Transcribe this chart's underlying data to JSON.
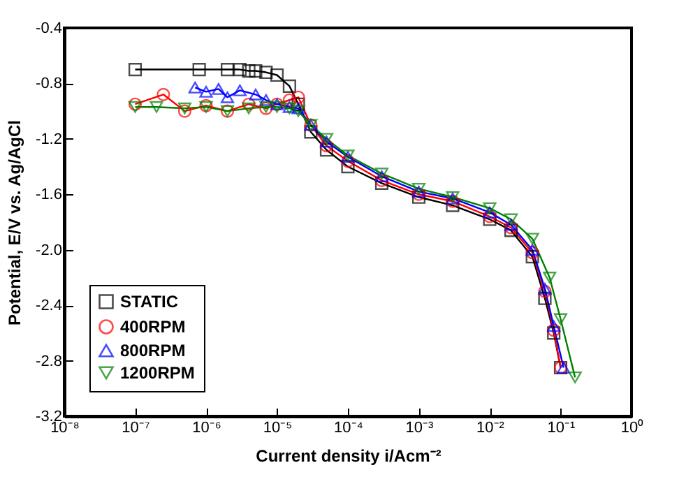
{
  "chart_data": {
    "type": "line",
    "xlabel": "Current density i/Acm⁻²",
    "ylabel": "Potential, E/V vs. Ag/AgCl",
    "log": "x",
    "grid": false,
    "legend": "bottom left",
    "line_style": "solid",
    "xlim": [
      1e-08,
      1
    ],
    "ylim": [
      -3.2,
      -0.4
    ],
    "xticks": [
      {
        "value": 1e-08,
        "label": "10⁻⁸"
      },
      {
        "value": 1e-07,
        "label": "10⁻⁷"
      },
      {
        "value": 1e-06,
        "label": "10⁻⁶"
      },
      {
        "value": 1e-05,
        "label": "10⁻⁵"
      },
      {
        "value": 0.0001,
        "label": "10⁻⁴"
      },
      {
        "value": 0.001,
        "label": "10⁻³"
      },
      {
        "value": 0.01,
        "label": "10⁻²"
      },
      {
        "value": 0.1,
        "label": "10⁻¹"
      },
      {
        "value": 1,
        "label": "10⁰"
      }
    ],
    "yticks": [
      -0.4,
      -0.8,
      -1.2,
      -1.6,
      {
        "value": -2,
        "label": "-2.0"
      },
      -2.4,
      -2.8,
      -3.2
    ],
    "series": [
      {
        "name": "STATIC",
        "color": "#000000",
        "marker": "square",
        "x": [
          1e-07,
          8e-07,
          2e-06,
          3e-06,
          4e-06,
          5e-06,
          7e-06,
          1e-05,
          1.5e-05,
          2e-05,
          3e-05,
          5e-05,
          0.0001,
          0.0003,
          0.001,
          0.003,
          0.01,
          0.02,
          0.04,
          0.06,
          0.08,
          0.1
        ],
        "values": [
          -0.7,
          -0.7,
          -0.7,
          -0.7,
          -0.71,
          -0.71,
          -0.72,
          -0.74,
          -0.82,
          -0.95,
          -1.15,
          -1.28,
          -1.4,
          -1.52,
          -1.62,
          -1.68,
          -1.78,
          -1.86,
          -2.05,
          -2.35,
          -2.6,
          -2.85
        ]
      },
      {
        "name": "400RPM",
        "color": "#ff0000",
        "marker": "circle",
        "x": [
          1e-07,
          2.5e-07,
          5e-07,
          1e-06,
          2e-06,
          4e-06,
          7e-06,
          1e-05,
          1.5e-05,
          2e-05,
          3e-05,
          5e-05,
          0.0001,
          0.0003,
          0.001,
          0.003,
          0.01,
          0.02,
          0.04,
          0.06,
          0.08,
          0.1
        ],
        "values": [
          -0.95,
          -0.88,
          -1.0,
          -0.96,
          -1.0,
          -0.95,
          -0.98,
          -0.95,
          -0.92,
          -0.9,
          -1.1,
          -1.25,
          -1.36,
          -1.5,
          -1.6,
          -1.65,
          -1.76,
          -1.84,
          -2.02,
          -2.3,
          -2.58,
          -2.85
        ]
      },
      {
        "name": "800RPM",
        "color": "#0000ff",
        "marker": "triangle",
        "x": [
          7e-07,
          1e-06,
          1.5e-06,
          2e-06,
          3e-06,
          5e-06,
          7e-06,
          1e-05,
          1.5e-05,
          2e-05,
          3e-05,
          5e-05,
          0.0001,
          0.0003,
          0.001,
          0.003,
          0.01,
          0.02,
          0.04,
          0.06,
          0.08,
          0.11
        ],
        "values": [
          -0.83,
          -0.86,
          -0.84,
          -0.9,
          -0.85,
          -0.88,
          -0.92,
          -0.95,
          -0.97,
          -0.98,
          -1.1,
          -1.22,
          -1.33,
          -1.47,
          -1.58,
          -1.63,
          -1.73,
          -1.82,
          -2.0,
          -2.28,
          -2.55,
          -2.85
        ]
      },
      {
        "name": "1200RPM",
        "color": "#008000",
        "marker": "triangle-down",
        "x": [
          1e-07,
          2e-07,
          5e-07,
          1e-06,
          2e-06,
          4e-06,
          7e-06,
          1e-05,
          1.5e-05,
          2e-05,
          3e-05,
          5e-05,
          0.0001,
          0.0003,
          0.001,
          0.003,
          0.01,
          0.02,
          0.04,
          0.07,
          0.1,
          0.16
        ],
        "values": [
          -0.97,
          -0.97,
          -0.98,
          -0.97,
          -1.0,
          -0.98,
          -0.97,
          -0.97,
          -0.98,
          -1.0,
          -1.1,
          -1.2,
          -1.32,
          -1.45,
          -1.56,
          -1.62,
          -1.7,
          -1.78,
          -1.92,
          -2.2,
          -2.5,
          -2.92
        ]
      }
    ]
  }
}
